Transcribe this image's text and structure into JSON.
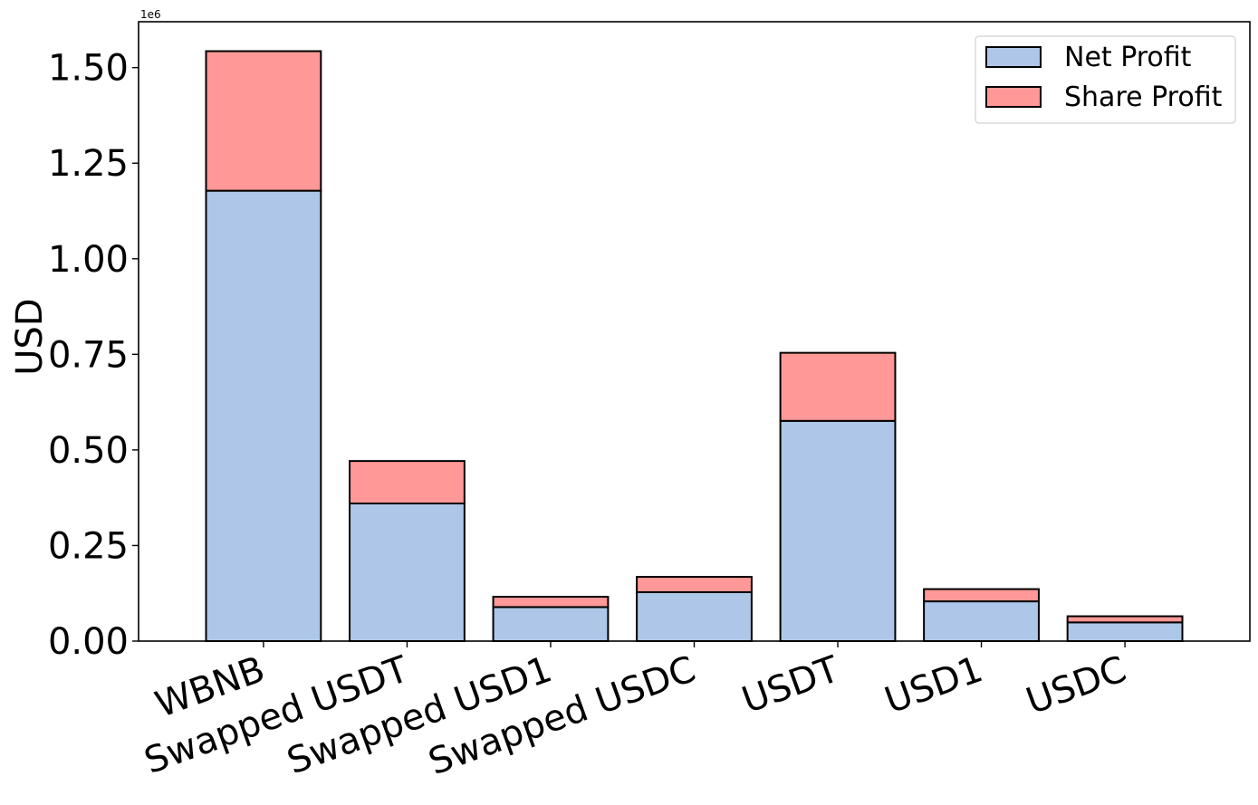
{
  "chart_data": {
    "type": "bar",
    "stacked": true,
    "categories": [
      "WBNB",
      "Swapped USDT",
      "Swapped USD1",
      "Swapped USDC",
      "USDT",
      "USD1",
      "USDC"
    ],
    "series": [
      {
        "name": "Net Profit",
        "color": "#aec7e8",
        "values": [
          1178000,
          360000,
          89000,
          128000,
          576000,
          104000,
          49000
        ]
      },
      {
        "name": "Share Profit",
        "color": "#ff9896",
        "values": [
          365000,
          111000,
          27000,
          40000,
          178000,
          32000,
          16000
        ]
      }
    ],
    "title": "",
    "xlabel": "",
    "ylabel": "USD",
    "y_scale_label": "1e6",
    "y_scale_factor": 1000000,
    "ylim": [
      0,
      1620000
    ],
    "yticks": [
      0,
      250000,
      500000,
      750000,
      1000000,
      1250000,
      1500000
    ],
    "ytick_labels": [
      "0.00",
      "0.25",
      "0.50",
      "0.75",
      "1.00",
      "1.25",
      "1.50"
    ],
    "grid": false,
    "legend_position": "top-right",
    "edge_color": "#000000"
  }
}
